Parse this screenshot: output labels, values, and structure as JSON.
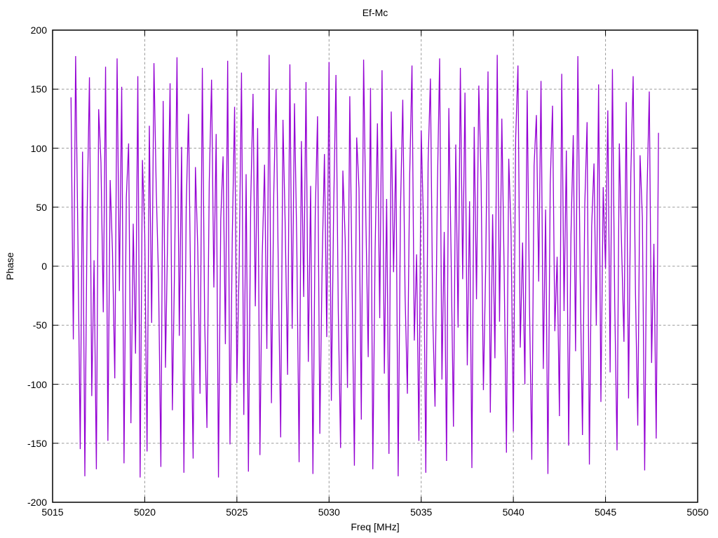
{
  "page": {
    "background": "#ffffff"
  },
  "chart_data": {
    "type": "line",
    "title": "Ef-Mc",
    "xlabel": "Freq [MHz]",
    "ylabel": "Phase",
    "xlim": [
      5015,
      5050
    ],
    "ylim": [
      -200,
      200
    ],
    "xticks": [
      5015,
      5020,
      5025,
      5030,
      5035,
      5040,
      5045,
      5050
    ],
    "yticks": [
      -200,
      -150,
      -100,
      -50,
      0,
      50,
      100,
      150,
      200
    ],
    "grid": true,
    "legend": "none",
    "line_color": "#9400d3",
    "grid_color": "#9b9b9b",
    "axis_color": "#000000",
    "series": [
      {
        "name": "Ef-Mc",
        "freq_start": 5016.0,
        "freq_step": 0.125,
        "phase": [
          143,
          -62,
          178,
          21,
          -155,
          97,
          -178,
          45,
          160,
          -110,
          5,
          -172,
          133,
          88,
          -39,
          169,
          -148,
          73,
          12,
          -95,
          176,
          -21,
          152,
          -167,
          58,
          104,
          -133,
          36,
          -74,
          161,
          -179,
          90,
          27,
          -157,
          119,
          -48,
          172,
          64,
          -12,
          -170,
          140,
          -86,
          33,
          155,
          -122,
          7,
          177,
          -59,
          101,
          -175,
          50,
          129,
          -30,
          -163,
          84,
          16,
          -108,
          168,
          -45,
          -137,
          71,
          158,
          -18,
          112,
          -179,
          40,
          93,
          -66,
          174,
          -151,
          25,
          135,
          -99,
          3,
          164,
          -126,
          78,
          -174,
          54,
          146,
          -34,
          117,
          -160,
          9,
          86,
          -70,
          179,
          -116,
          61,
          150,
          -7,
          -145,
          124,
          31,
          -92,
          171,
          -53,
          138,
          18,
          -166,
          106,
          -26,
          156,
          -81,
          68,
          -176,
          42,
          127,
          -142,
          2,
          95,
          -60,
          173,
          -114,
          49,
          162,
          -37,
          -154,
          81,
          23,
          -103,
          144,
          -15,
          -169,
          109,
          66,
          -130,
          175,
          38,
          -77,
          151,
          -172,
          14,
          121,
          -44,
          166,
          -91,
          57,
          -159,
          131,
          -5,
          99,
          -178,
          47,
          141,
          -24,
          -108,
          77,
          170,
          -63,
          10,
          -148,
          115,
          35,
          -175,
          88,
          159,
          -41,
          -119,
          63,
          176,
          -96,
          29,
          -165,
          134,
          6,
          -136,
          103,
          -52,
          168,
          -11,
          147,
          -84,
          55,
          -171,
          118,
          -28,
          153,
          72,
          -105,
          1,
          165,
          -124,
          44,
          -78,
          179,
          -47,
          125,
          -3,
          -158,
          91,
          30,
          -140,
          108,
          170,
          -69,
          20,
          -100,
          149,
          -33,
          -164,
          85,
          128,
          -13,
          157,
          -87,
          48,
          -176,
          69,
          136,
          -55,
          8,
          -127,
          163,
          -38,
          98,
          -152,
          26,
          111,
          -72,
          178,
          -9,
          -143,
          52,
          122,
          -168,
          34,
          87,
          -50,
          154,
          -115,
          67,
          -2,
          132,
          -90,
          167,
          -31,
          -156,
          104,
          15,
          -64,
          139,
          -112,
          79,
          161,
          -22,
          -135,
          94,
          41,
          -173,
          60,
          148,
          -82,
          19,
          -146,
          113
        ]
      }
    ]
  }
}
